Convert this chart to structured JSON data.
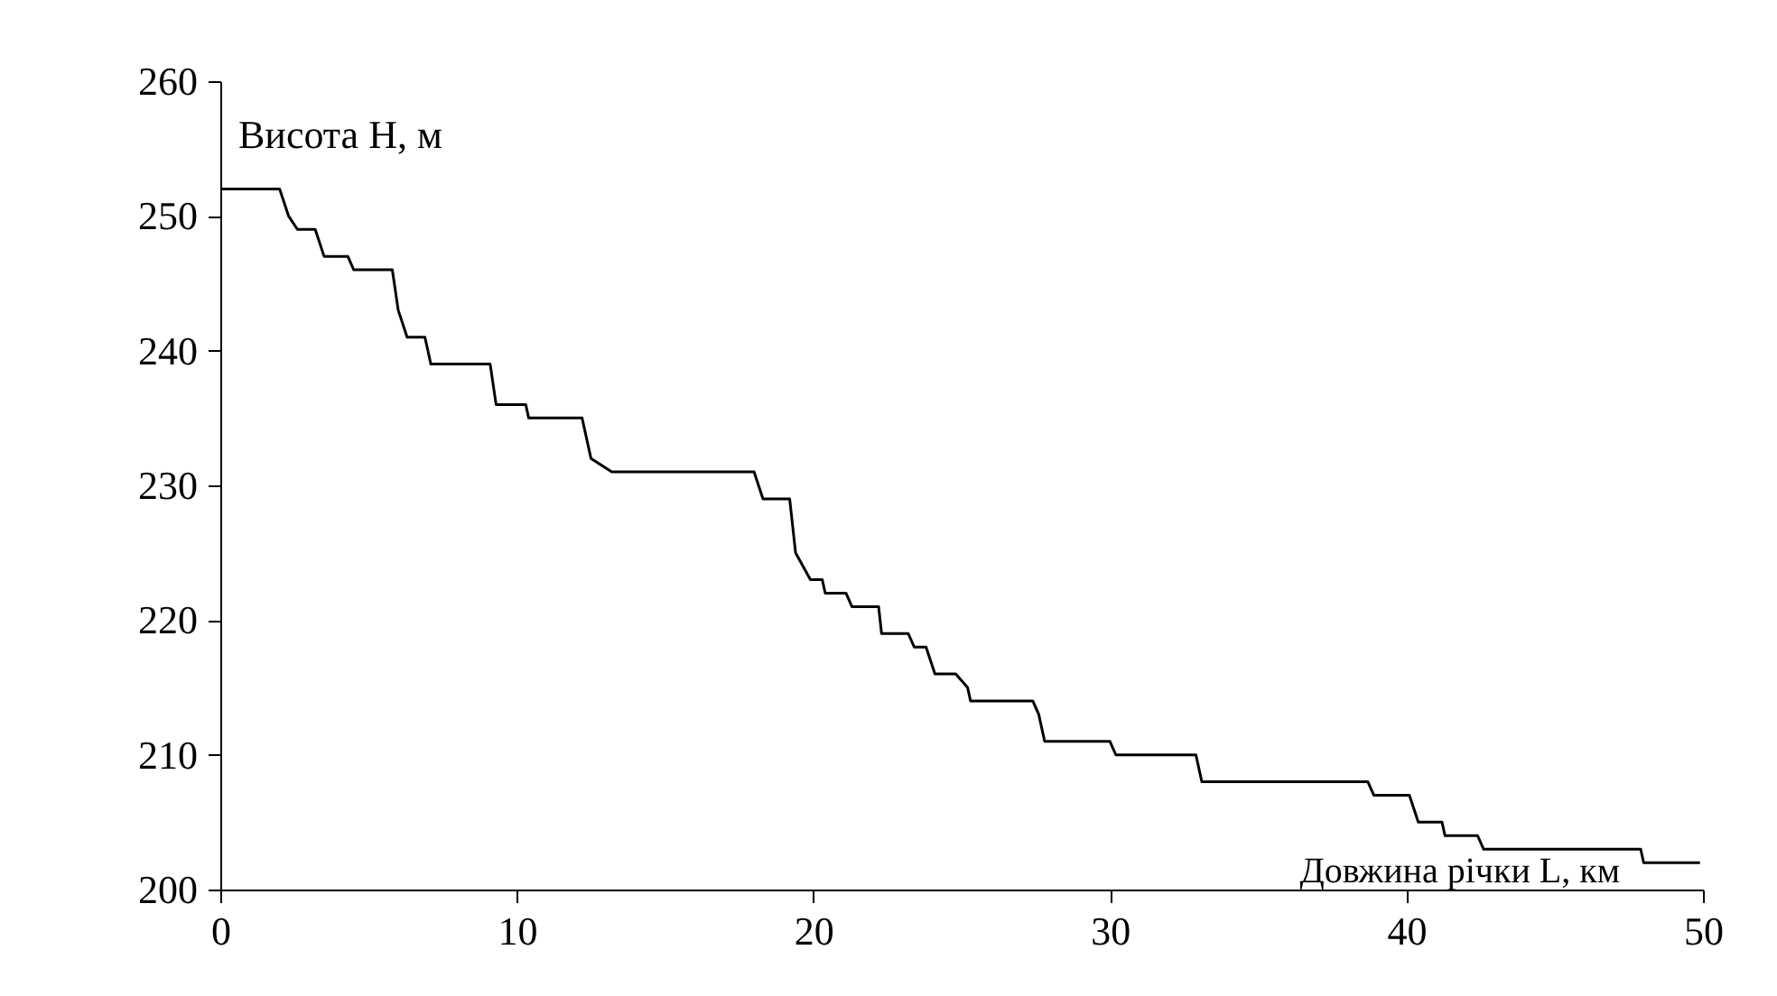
{
  "chart_data": {
    "type": "line",
    "xlabel": "Довжина річки L, км",
    "ylabel": "Висота H, м",
    "x": [
      0,
      2.0,
      2.3,
      2.6,
      3.2,
      3.5,
      4.3,
      4.5,
      5.8,
      6.0,
      6.3,
      6.9,
      7.1,
      9.1,
      9.3,
      10.3,
      10.4,
      12.2,
      12.5,
      13.2,
      18.0,
      18.3,
      19.2,
      19.4,
      19.9,
      20.3,
      20.4,
      21.1,
      21.3,
      22.2,
      22.3,
      23.2,
      23.4,
      23.8,
      24.1,
      24.8,
      25.2,
      25.3,
      27.4,
      27.6,
      27.8,
      30.0,
      30.2,
      32.9,
      33.1,
      38.7,
      38.9,
      40.1,
      40.4,
      41.2,
      41.3,
      42.4,
      42.6,
      47.9,
      48.0,
      49.9
    ],
    "series": [
      {
        "color": "#000000",
        "values": [
          252,
          252,
          250,
          249,
          249,
          247,
          247,
          246,
          246,
          243,
          241,
          241,
          239,
          239,
          236,
          236,
          235,
          235,
          232,
          231,
          231,
          229,
          229,
          225,
          223,
          223,
          222,
          222,
          221,
          221,
          219,
          219,
          218,
          218,
          216,
          216,
          215,
          214,
          214,
          213,
          211,
          211,
          210,
          210,
          208,
          208,
          207,
          207,
          205,
          205,
          204,
          204,
          203,
          203,
          202,
          202
        ]
      }
    ],
    "xlim": [
      0,
      50
    ],
    "ylim": [
      200,
      260
    ],
    "xticks": [
      0,
      10,
      20,
      30,
      40,
      50
    ],
    "yticks": [
      200,
      210,
      220,
      230,
      240,
      250,
      260
    ],
    "grid": false,
    "legend": false,
    "marker": "none",
    "line_style": "solid"
  }
}
